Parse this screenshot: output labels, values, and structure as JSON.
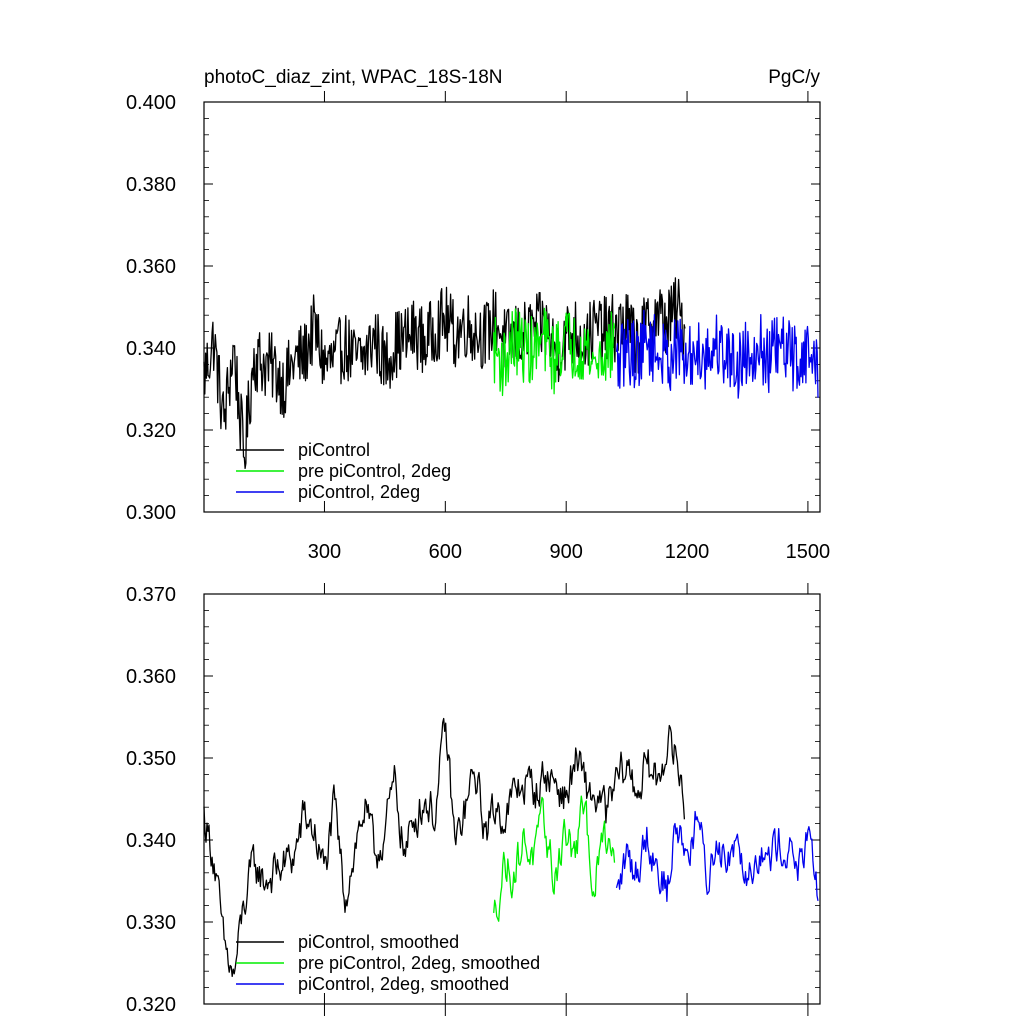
{
  "chart_data": [
    {
      "type": "line",
      "title": "photoC_diaz_zint, WPAC_18S-18N",
      "units": "PgC/y",
      "xlabel": "",
      "ylabel": "",
      "xlim": [
        1,
        1530
      ],
      "ylim": [
        0.3,
        0.4
      ],
      "yticks": [
        0.3,
        0.32,
        0.34,
        0.36,
        0.38,
        0.4
      ],
      "ytick_labels": [
        "0.300",
        "0.320",
        "0.340",
        "0.360",
        "0.380",
        "0.400"
      ],
      "xticks": [
        300,
        600,
        900,
        1200,
        1500
      ],
      "xtick_labels": [
        "300",
        "600",
        "900",
        "1200",
        "1500"
      ],
      "grid": false,
      "legend_position": "bottom-left",
      "series": [
        {
          "name": "piControl",
          "color": "#000000",
          "x": [
            1,
            25,
            50,
            75,
            100,
            125,
            150,
            175,
            200,
            225,
            250,
            275,
            300,
            325,
            350,
            375,
            400,
            425,
            450,
            475,
            500,
            525,
            550,
            575,
            600,
            625,
            650,
            675,
            700,
            725,
            750,
            775,
            800,
            825,
            850,
            875,
            900,
            925,
            950,
            975,
            1000,
            1025,
            1050,
            1075,
            1100,
            1125,
            1150,
            1175,
            1195
          ],
          "values": [
            0.333,
            0.342,
            0.322,
            0.34,
            0.313,
            0.338,
            0.336,
            0.335,
            0.331,
            0.337,
            0.338,
            0.345,
            0.336,
            0.337,
            0.341,
            0.337,
            0.338,
            0.343,
            0.336,
            0.341,
            0.342,
            0.344,
            0.341,
            0.345,
            0.347,
            0.343,
            0.346,
            0.344,
            0.343,
            0.347,
            0.341,
            0.343,
            0.343,
            0.345,
            0.345,
            0.339,
            0.343,
            0.344,
            0.342,
            0.345,
            0.344,
            0.345,
            0.346,
            0.341,
            0.345,
            0.348,
            0.346,
            0.35,
            0.344
          ]
        },
        {
          "name": "pre piControl, 2deg",
          "color": "#00ee00",
          "x": [
            720,
            745,
            770,
            795,
            820,
            845,
            870,
            895,
            920,
            945,
            970,
            995,
            1020
          ],
          "values": [
            0.34,
            0.336,
            0.342,
            0.34,
            0.339,
            0.342,
            0.337,
            0.343,
            0.34,
            0.341,
            0.336,
            0.339,
            0.341
          ]
        },
        {
          "name": "piControl, 2deg",
          "color": "#0000ee",
          "x": [
            1025,
            1050,
            1075,
            1100,
            1125,
            1150,
            1175,
            1200,
            1225,
            1250,
            1275,
            1300,
            1325,
            1350,
            1375,
            1400,
            1425,
            1450,
            1475,
            1500,
            1525
          ],
          "values": [
            0.335,
            0.34,
            0.338,
            0.342,
            0.339,
            0.337,
            0.34,
            0.336,
            0.34,
            0.338,
            0.341,
            0.338,
            0.336,
            0.339,
            0.341,
            0.337,
            0.34,
            0.339,
            0.337,
            0.339,
            0.335
          ]
        }
      ]
    },
    {
      "type": "line",
      "title": "",
      "xlabel": "",
      "ylabel": "",
      "xlim": [
        1,
        1530
      ],
      "ylim": [
        0.32,
        0.37
      ],
      "yticks": [
        0.32,
        0.33,
        0.34,
        0.35,
        0.36,
        0.37
      ],
      "ytick_labels": [
        "0.320",
        "0.330",
        "0.340",
        "0.350",
        "0.360",
        "0.370"
      ],
      "xticks": [
        300,
        600,
        900,
        1200,
        1500
      ],
      "xtick_labels": [],
      "grid": false,
      "legend_position": "bottom-left",
      "series": [
        {
          "name": "piControl, smoothed",
          "color": "#000000",
          "x": [
            1,
            25,
            50,
            75,
            100,
            125,
            150,
            175,
            200,
            225,
            250,
            275,
            300,
            325,
            350,
            375,
            400,
            425,
            450,
            475,
            500,
            525,
            550,
            575,
            600,
            625,
            650,
            675,
            700,
            725,
            750,
            775,
            800,
            825,
            850,
            875,
            900,
            925,
            950,
            975,
            1000,
            1025,
            1050,
            1075,
            1100,
            1125,
            1150,
            1175,
            1195
          ],
          "values": [
            0.343,
            0.338,
            0.327,
            0.323,
            0.332,
            0.337,
            0.335,
            0.336,
            0.337,
            0.338,
            0.343,
            0.341,
            0.336,
            0.344,
            0.333,
            0.339,
            0.344,
            0.338,
            0.341,
            0.347,
            0.338,
            0.343,
            0.345,
            0.343,
            0.354,
            0.339,
            0.344,
            0.348,
            0.341,
            0.344,
            0.343,
            0.346,
            0.347,
            0.346,
            0.348,
            0.347,
            0.345,
            0.35,
            0.346,
            0.345,
            0.343,
            0.347,
            0.349,
            0.346,
            0.349,
            0.347,
            0.352,
            0.35,
            0.344
          ]
        },
        {
          "name": "pre piControl, 2deg, smoothed",
          "color": "#00ee00",
          "x": [
            720,
            745,
            770,
            795,
            820,
            845,
            870,
            895,
            920,
            945,
            970,
            995,
            1020
          ],
          "values": [
            0.33,
            0.337,
            0.336,
            0.34,
            0.338,
            0.342,
            0.335,
            0.341,
            0.338,
            0.344,
            0.334,
            0.341,
            0.339
          ]
        },
        {
          "name": "piControl, 2deg, smoothed",
          "color": "#0000ee",
          "x": [
            1025,
            1050,
            1075,
            1100,
            1125,
            1150,
            1175,
            1200,
            1225,
            1250,
            1275,
            1300,
            1325,
            1350,
            1375,
            1400,
            1425,
            1450,
            1475,
            1500,
            1525
          ],
          "values": [
            0.333,
            0.338,
            0.336,
            0.341,
            0.337,
            0.334,
            0.342,
            0.338,
            0.343,
            0.335,
            0.34,
            0.338,
            0.341,
            0.336,
            0.339,
            0.337,
            0.34,
            0.339,
            0.337,
            0.339,
            0.334
          ]
        }
      ]
    }
  ]
}
